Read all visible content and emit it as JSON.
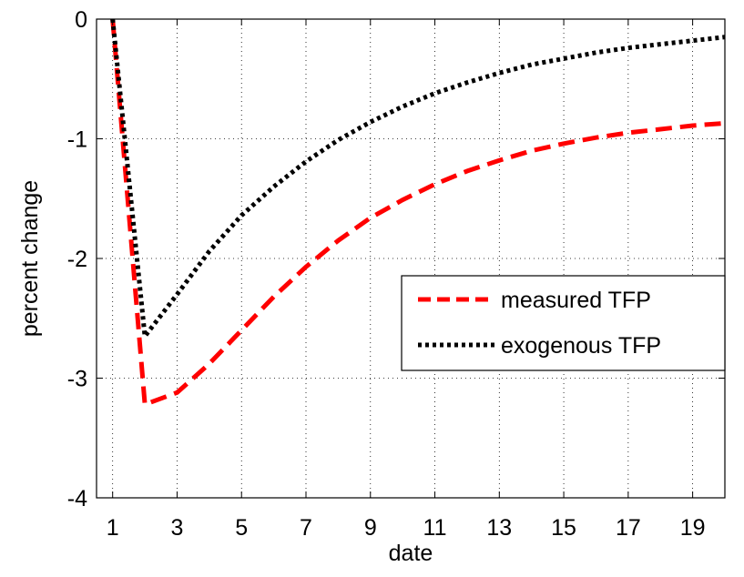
{
  "chart_data": {
    "type": "line",
    "title": "",
    "xlabel": "date",
    "ylabel": "percent change",
    "xlim": [
      0.5,
      20
    ],
    "ylim": [
      -4,
      0
    ],
    "xticks": [
      1,
      3,
      5,
      7,
      9,
      11,
      13,
      15,
      17,
      19
    ],
    "yticks": [
      0,
      -1,
      -2,
      -3,
      -4
    ],
    "xtick_labels": [
      "1",
      "3",
      "5",
      "7",
      "9",
      "11",
      "13",
      "15",
      "17",
      "19"
    ],
    "ytick_labels": [
      "0",
      "-1",
      "-2",
      "-3",
      "-4"
    ],
    "grid": true,
    "legend_position": "right",
    "x": [
      1,
      2,
      3,
      4,
      5,
      6,
      7,
      8,
      9,
      10,
      11,
      12,
      13,
      14,
      15,
      16,
      17,
      18,
      19,
      20
    ],
    "series": [
      {
        "name": "measured TFP",
        "color": "#ff0000",
        "style": "dashed",
        "values": [
          0,
          -3.22,
          -3.12,
          -2.88,
          -2.6,
          -2.32,
          -2.07,
          -1.85,
          -1.66,
          -1.51,
          -1.38,
          -1.27,
          -1.18,
          -1.1,
          -1.04,
          -0.99,
          -0.95,
          -0.92,
          -0.89,
          -0.87
        ]
      },
      {
        "name": "exogenous TFP",
        "color": "#000000",
        "style": "dotted",
        "values": [
          0,
          -2.65,
          -2.3,
          -1.94,
          -1.64,
          -1.4,
          -1.19,
          -1.01,
          -0.86,
          -0.73,
          -0.62,
          -0.53,
          -0.45,
          -0.38,
          -0.33,
          -0.28,
          -0.24,
          -0.21,
          -0.18,
          -0.15
        ]
      }
    ]
  }
}
